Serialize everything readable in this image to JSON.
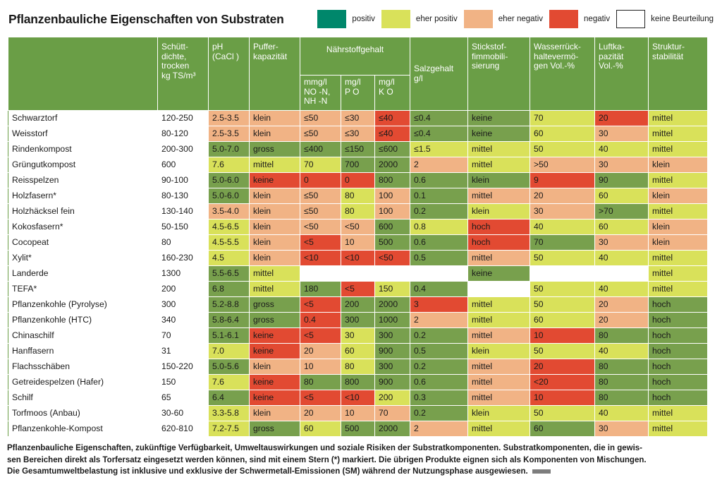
{
  "title": "Pflanzenbauliche Eigenschaften von Substraten",
  "legend": [
    {
      "label": "positiv",
      "color": "#00876b"
    },
    {
      "label": "eher positiv",
      "color": "#d9e15a"
    },
    {
      "label": "eher negativ",
      "color": "#f1b385"
    },
    {
      "label": "negativ",
      "color": "#e24a32"
    },
    {
      "label": "keine Beurteilung",
      "color": "#ffffff"
    }
  ],
  "header": {
    "schuett": "Schütt-\ndichte,\ntrocken\nkg TS/m³",
    "ph": "pH\n(CaCl )",
    "puffer": "Puffer-\nkapazität",
    "naehrstoff": "Nährstoffgehalt",
    "n": "mmg/l\nNO -N,\nNH -N",
    "p": "mg/l\nP O",
    "k": "mg/l\nK O",
    "salz": "Salzgehalt\ng/l",
    "stick": "Stickstof-\nfimmobili-\nsierung",
    "wasser": "Wasserrück-\nhaltevermö-\ngen Vol.-%",
    "luft": "Luftka-\npazität\nVol.-%",
    "struktur": "Struktur-\nstabilität"
  },
  "rows": [
    {
      "name": "Schwarztorf",
      "cells": [
        [
          "120-250",
          ""
        ],
        [
          "2.5-3.5",
          "orange"
        ],
        [
          "klein",
          "orange"
        ],
        [
          "≤50",
          "orange"
        ],
        [
          "≤30",
          "orange"
        ],
        [
          "≤40",
          "red"
        ],
        [
          "≤0.4",
          "green"
        ],
        [
          "keine",
          "green"
        ],
        [
          "70",
          "lgreen"
        ],
        [
          "20",
          "red"
        ],
        [
          "mittel",
          "lgreen"
        ]
      ]
    },
    {
      "name": "Weisstorf",
      "cells": [
        [
          "80-120",
          ""
        ],
        [
          "2.5-3.5",
          "orange"
        ],
        [
          "klein",
          "orange"
        ],
        [
          "≤50",
          "orange"
        ],
        [
          "≤30",
          "orange"
        ],
        [
          "≤40",
          "red"
        ],
        [
          "≤0.4",
          "green"
        ],
        [
          "keine",
          "green"
        ],
        [
          "60",
          "lgreen"
        ],
        [
          "30",
          "orange"
        ],
        [
          "mittel",
          "lgreen"
        ]
      ]
    },
    {
      "name": "Rindenkompost",
      "cells": [
        [
          "200-300",
          ""
        ],
        [
          "5.0-7.0",
          "green"
        ],
        [
          "gross",
          "green"
        ],
        [
          "≤400",
          "green"
        ],
        [
          "≤150",
          "green"
        ],
        [
          "≤600",
          "green"
        ],
        [
          "≤1.5",
          "lgreen"
        ],
        [
          "mittel",
          "lgreen"
        ],
        [
          "50",
          "lgreen"
        ],
        [
          "40",
          "lgreen"
        ],
        [
          "mittel",
          "lgreen"
        ]
      ]
    },
    {
      "name": "Grüngutkompost",
      "cells": [
        [
          "600",
          ""
        ],
        [
          "7.6",
          "lgreen"
        ],
        [
          "mittel",
          "lgreen"
        ],
        [
          "70",
          "lgreen"
        ],
        [
          "700",
          "green"
        ],
        [
          "2000",
          "green"
        ],
        [
          "2",
          "orange"
        ],
        [
          "mittel",
          "lgreen"
        ],
        [
          ">50",
          "orange"
        ],
        [
          "30",
          "orange"
        ],
        [
          "klein",
          "orange"
        ]
      ]
    },
    {
      "name": "Reisspelzen",
      "cells": [
        [
          "90-100",
          ""
        ],
        [
          "5.0-6.0",
          "green"
        ],
        [
          "keine",
          "red"
        ],
        [
          "0",
          "red"
        ],
        [
          "0",
          "red"
        ],
        [
          "800",
          "green"
        ],
        [
          "0.6",
          "green"
        ],
        [
          "klein",
          "green"
        ],
        [
          "9",
          "red"
        ],
        [
          "90",
          "green"
        ],
        [
          "mittel",
          "lgreen"
        ]
      ]
    },
    {
      "name": "Holzfasern*",
      "cells": [
        [
          "80-130",
          ""
        ],
        [
          "5.0-6.0",
          "green"
        ],
        [
          "klein",
          "orange"
        ],
        [
          "≤50",
          "orange"
        ],
        [
          "80",
          "lgreen"
        ],
        [
          "100",
          "orange"
        ],
        [
          "0.1",
          "green"
        ],
        [
          "mittel",
          "orange"
        ],
        [
          "20",
          "orange"
        ],
        [
          "60",
          "lgreen"
        ],
        [
          "klein",
          "orange"
        ]
      ]
    },
    {
      "name": "Holzhäcksel fein",
      "cells": [
        [
          "130-140",
          ""
        ],
        [
          "3.5-4.0",
          "orange"
        ],
        [
          "klein",
          "orange"
        ],
        [
          "≤50",
          "orange"
        ],
        [
          "80",
          "lgreen"
        ],
        [
          "100",
          "orange"
        ],
        [
          "0.2",
          "green"
        ],
        [
          "klein",
          "lgreen"
        ],
        [
          "30",
          "orange"
        ],
        [
          ">70",
          "green"
        ],
        [
          "mittel",
          "lgreen"
        ]
      ]
    },
    {
      "name": "Kokosfasern*",
      "cells": [
        [
          "50-150",
          ""
        ],
        [
          "4.5-6.5",
          "lgreen"
        ],
        [
          "klein",
          "orange"
        ],
        [
          "<50",
          "orange"
        ],
        [
          "<50",
          "orange"
        ],
        [
          "600",
          "green"
        ],
        [
          "0.8",
          "lgreen"
        ],
        [
          "hoch",
          "red"
        ],
        [
          "40",
          "lgreen"
        ],
        [
          "60",
          "lgreen"
        ],
        [
          "klein",
          "orange"
        ]
      ]
    },
    {
      "name": "Cocopeat",
      "cells": [
        [
          "80",
          ""
        ],
        [
          "4.5-5.5",
          "lgreen"
        ],
        [
          "klein",
          "orange"
        ],
        [
          "<5",
          "red"
        ],
        [
          "10",
          "orange"
        ],
        [
          "500",
          "green"
        ],
        [
          "0.6",
          "green"
        ],
        [
          "hoch",
          "red"
        ],
        [
          "70",
          "green"
        ],
        [
          "30",
          "orange"
        ],
        [
          "klein",
          "orange"
        ]
      ]
    },
    {
      "name": "Xylit*",
      "cells": [
        [
          "160-230",
          ""
        ],
        [
          "4.5",
          "lgreen"
        ],
        [
          "klein",
          "orange"
        ],
        [
          "<10",
          "red"
        ],
        [
          "<10",
          "red"
        ],
        [
          "<50",
          "red"
        ],
        [
          "0.5",
          "green"
        ],
        [
          "mittel",
          "orange"
        ],
        [
          "50",
          "lgreen"
        ],
        [
          "40",
          "lgreen"
        ],
        [
          "mittel",
          "lgreen"
        ]
      ]
    },
    {
      "name": "Landerde",
      "cells": [
        [
          "1300",
          ""
        ],
        [
          "5.5-6.5",
          "green"
        ],
        [
          "mittel",
          "lgreen"
        ],
        [
          "",
          "white"
        ],
        [
          "",
          "white"
        ],
        [
          "",
          "white"
        ],
        [
          "",
          "white"
        ],
        [
          "keine",
          "green"
        ],
        [
          "",
          "white"
        ],
        [
          "",
          "white"
        ],
        [
          "mittel",
          "lgreen"
        ]
      ]
    },
    {
      "name": "TEFA*",
      "cells": [
        [
          "200",
          ""
        ],
        [
          "6.8",
          "green"
        ],
        [
          "mittel",
          "lgreen"
        ],
        [
          "180",
          "green"
        ],
        [
          "<5",
          "red"
        ],
        [
          "150",
          "lgreen"
        ],
        [
          "0.4",
          "green"
        ],
        [
          "",
          "white"
        ],
        [
          "50",
          "lgreen"
        ],
        [
          "40",
          "lgreen"
        ],
        [
          "mittel",
          "lgreen"
        ]
      ]
    },
    {
      "name": "Pflanzenkohle (Pyrolyse)",
      "cells": [
        [
          "300",
          ""
        ],
        [
          "5.2-8.8",
          "green"
        ],
        [
          "gross",
          "green"
        ],
        [
          "<5",
          "red"
        ],
        [
          "200",
          "green"
        ],
        [
          "2000",
          "green"
        ],
        [
          "3",
          "red"
        ],
        [
          "mittel",
          "lgreen"
        ],
        [
          "50",
          "lgreen"
        ],
        [
          "20",
          "orange"
        ],
        [
          "hoch",
          "green"
        ]
      ]
    },
    {
      "name": "Pflanzenkohle (HTC)",
      "cells": [
        [
          "340",
          ""
        ],
        [
          "5.8-6.4",
          "green"
        ],
        [
          "gross",
          "green"
        ],
        [
          "0.4",
          "red"
        ],
        [
          "300",
          "green"
        ],
        [
          "1000",
          "green"
        ],
        [
          "2",
          "orange"
        ],
        [
          "mittel",
          "lgreen"
        ],
        [
          "60",
          "lgreen"
        ],
        [
          "20",
          "orange"
        ],
        [
          "hoch",
          "green"
        ]
      ]
    },
    {
      "name": "Chinaschilf",
      "cells": [
        [
          "70",
          ""
        ],
        [
          "5.1-6.1",
          "green"
        ],
        [
          "keine",
          "red"
        ],
        [
          "<5",
          "red"
        ],
        [
          "30",
          "lgreen"
        ],
        [
          "300",
          "green"
        ],
        [
          "0.2",
          "green"
        ],
        [
          "mittel",
          "orange"
        ],
        [
          "10",
          "red"
        ],
        [
          "80",
          "green"
        ],
        [
          "hoch",
          "green"
        ]
      ]
    },
    {
      "name": "Hanffasern",
      "cells": [
        [
          "31",
          ""
        ],
        [
          "7.0",
          "lgreen"
        ],
        [
          "keine",
          "red"
        ],
        [
          "20",
          "orange"
        ],
        [
          "60",
          "lgreen"
        ],
        [
          "900",
          "green"
        ],
        [
          "0.5",
          "green"
        ],
        [
          "klein",
          "lgreen"
        ],
        [
          "50",
          "lgreen"
        ],
        [
          "40",
          "lgreen"
        ],
        [
          "hoch",
          "green"
        ]
      ]
    },
    {
      "name": "Flachsschäben",
      "cells": [
        [
          "150-220",
          ""
        ],
        [
          "5.0-5.6",
          "green"
        ],
        [
          "klein",
          "orange"
        ],
        [
          "10",
          "orange"
        ],
        [
          "80",
          "lgreen"
        ],
        [
          "300",
          "green"
        ],
        [
          "0.2",
          "green"
        ],
        [
          "mittel",
          "orange"
        ],
        [
          "20",
          "red"
        ],
        [
          "80",
          "green"
        ],
        [
          "hoch",
          "green"
        ]
      ]
    },
    {
      "name": "Getreidespelzen (Hafer)",
      "cells": [
        [
          "150",
          ""
        ],
        [
          "7.6",
          "lgreen"
        ],
        [
          "keine",
          "red"
        ],
        [
          "80",
          "green"
        ],
        [
          "800",
          "green"
        ],
        [
          "900",
          "green"
        ],
        [
          "0.6",
          "green"
        ],
        [
          "mittel",
          "orange"
        ],
        [
          "<20",
          "red"
        ],
        [
          "80",
          "green"
        ],
        [
          "hoch",
          "green"
        ]
      ]
    },
    {
      "name": "Schilf",
      "cells": [
        [
          "65",
          ""
        ],
        [
          "6.4",
          "green"
        ],
        [
          "keine",
          "red"
        ],
        [
          "<5",
          "red"
        ],
        [
          "<10",
          "red"
        ],
        [
          "200",
          "lgreen"
        ],
        [
          "0.3",
          "green"
        ],
        [
          "mittel",
          "orange"
        ],
        [
          "10",
          "red"
        ],
        [
          "80",
          "green"
        ],
        [
          "hoch",
          "green"
        ]
      ]
    },
    {
      "name": "Torfmoos (Anbau)",
      "cells": [
        [
          "30-60",
          ""
        ],
        [
          "3.3-5.8",
          "lgreen"
        ],
        [
          "klein",
          "orange"
        ],
        [
          "20",
          "orange"
        ],
        [
          "10",
          "orange"
        ],
        [
          "70",
          "orange"
        ],
        [
          "0.2",
          "green"
        ],
        [
          "klein",
          "lgreen"
        ],
        [
          "50",
          "lgreen"
        ],
        [
          "40",
          "lgreen"
        ],
        [
          "mittel",
          "lgreen"
        ]
      ]
    },
    {
      "name": "Pflanzenkohle-Kompost",
      "cells": [
        [
          "620-810",
          ""
        ],
        [
          "7.2-7.5",
          "lgreen"
        ],
        [
          "gross",
          "green"
        ],
        [
          "60",
          "lgreen"
        ],
        [
          "500",
          "green"
        ],
        [
          "2000",
          "green"
        ],
        [
          "2",
          "orange"
        ],
        [
          "mittel",
          "lgreen"
        ],
        [
          "60",
          "green"
        ],
        [
          "30",
          "orange"
        ],
        [
          "mittel",
          "lgreen"
        ]
      ]
    }
  ],
  "caption": [
    "Pflanzenbauliche Eigenschaften, zukünftige Verfügbarkeit, Umweltauswirkungen und soziale Risiken der Substratkomponenten. Substratkomponenten, die in gewis-",
    "sen Bereichen direkt als Torfersatz eingesetzt werden können, sind mit einem Stern (*) markiert. Die übrigen Produkte eignen sich als Komponenten von Mischungen.",
    "Die Gesamtumweltbelastung ist inklusive und exklusive der Schwermetall-Emissionen (SM) während der Nutzungsphase ausgewiesen."
  ]
}
